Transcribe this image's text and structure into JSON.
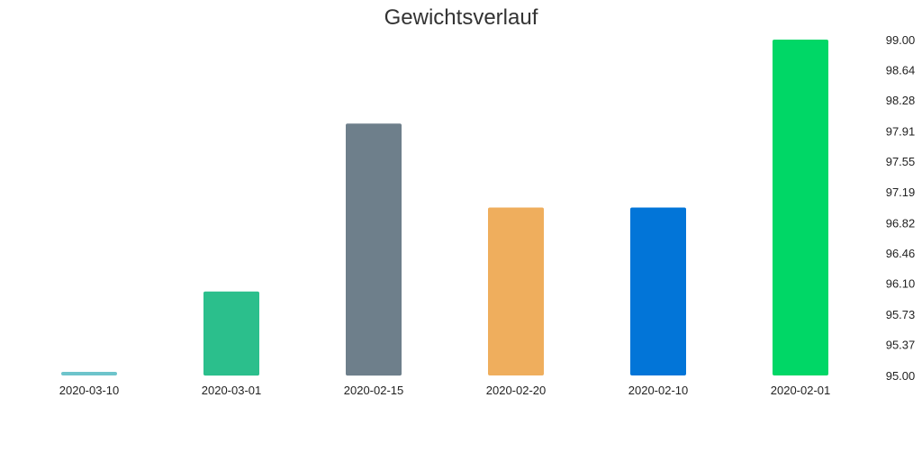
{
  "chart_data": {
    "type": "bar",
    "title": "Gewichtsverlauf",
    "xlabel": "",
    "ylabel": "",
    "categories": [
      "2020-03-10",
      "2020-03-01",
      "2020-02-15",
      "2020-02-20",
      "2020-02-10",
      "2020-02-01"
    ],
    "values": [
      95.03,
      96.0,
      98.0,
      97.0,
      97.0,
      99.0
    ],
    "colors": [
      "#6dc4cb",
      "#2bbf8c",
      "#6e7f8b",
      "#efae5d",
      "#0275d8",
      "#00d766"
    ],
    "ylim": [
      95.0,
      99.0
    ],
    "yticks": [
      "95.00",
      "95.37",
      "95.73",
      "96.10",
      "96.46",
      "96.82",
      "97.19",
      "97.55",
      "97.91",
      "98.28",
      "98.64",
      "99.00"
    ],
    "yaxis_position": "right",
    "grid": false,
    "legend": "none"
  }
}
